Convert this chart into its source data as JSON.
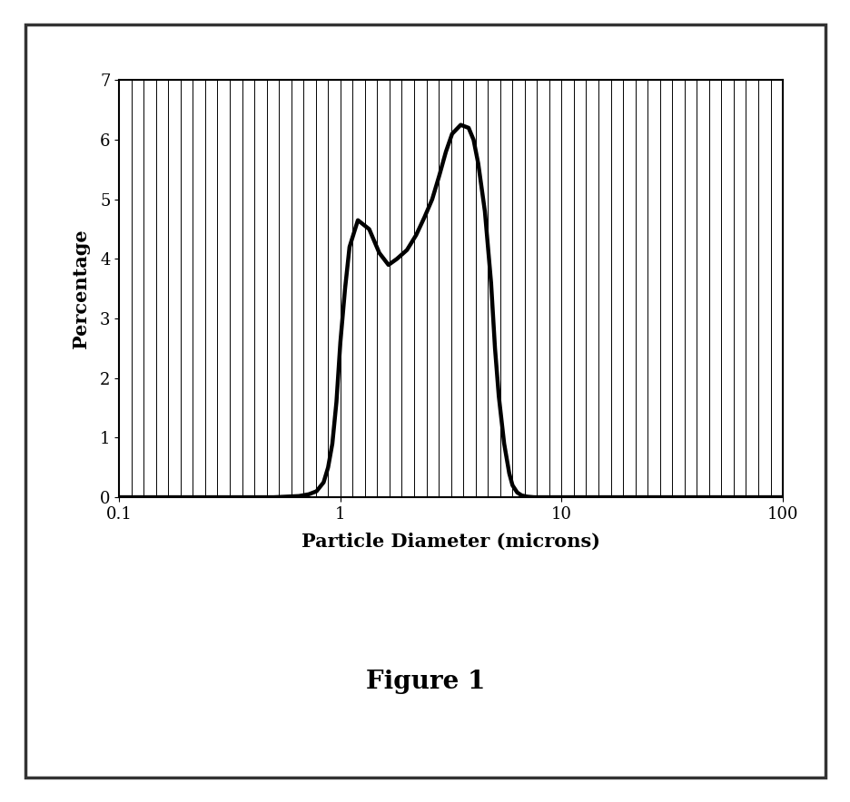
{
  "title": "Figure 1",
  "xlabel": "Particle Diameter (microns)",
  "ylabel": "Percentage",
  "xlim": [
    0.1,
    100
  ],
  "ylim": [
    0,
    7
  ],
  "yticks": [
    0,
    1,
    2,
    3,
    4,
    5,
    6,
    7
  ],
  "xticks": [
    0.1,
    1,
    10,
    100
  ],
  "xtick_labels": [
    "0.1",
    "1",
    "10",
    "100"
  ],
  "line_color": "#000000",
  "line_width": 3.2,
  "background_color": "#ffffff",
  "grid_color": "#000000",
  "n_vertical_lines": 55,
  "curve_x": [
    0.1,
    0.3,
    0.5,
    0.65,
    0.72,
    0.78,
    0.84,
    0.88,
    0.92,
    0.96,
    1.0,
    1.05,
    1.1,
    1.2,
    1.35,
    1.5,
    1.65,
    1.8,
    2.0,
    2.2,
    2.4,
    2.6,
    2.8,
    3.0,
    3.2,
    3.5,
    3.8,
    4.0,
    4.2,
    4.5,
    4.8,
    5.0,
    5.2,
    5.5,
    5.8,
    6.0,
    6.3,
    6.6,
    7.0,
    7.5,
    8.0,
    8.5,
    9.0,
    10.0,
    12.0,
    15.0,
    20.0,
    50.0,
    100.0
  ],
  "curve_y": [
    0.0,
    0.0,
    0.0,
    0.02,
    0.05,
    0.1,
    0.25,
    0.5,
    0.9,
    1.6,
    2.6,
    3.5,
    4.2,
    4.65,
    4.5,
    4.1,
    3.9,
    4.0,
    4.15,
    4.4,
    4.7,
    5.0,
    5.4,
    5.8,
    6.1,
    6.25,
    6.2,
    6.0,
    5.6,
    4.8,
    3.6,
    2.5,
    1.7,
    0.9,
    0.4,
    0.2,
    0.08,
    0.03,
    0.01,
    0.0,
    0.0,
    0.0,
    0.0,
    0.0,
    0.0,
    0.0,
    0.0,
    0.0,
    0.0
  ],
  "fig_width": 9.37,
  "fig_height": 8.84,
  "outer_border_color": "#333333",
  "outer_border_linewidth": 2.5
}
